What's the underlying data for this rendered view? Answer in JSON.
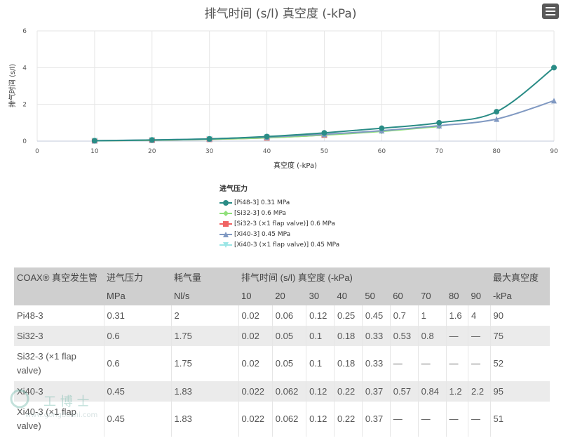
{
  "chart_data": {
    "type": "line",
    "title": "排气时间 (s/l) 真空度 (-kPa)",
    "xlabel": "真空度 (-kPa)",
    "ylabel": "排气时间 (s/l)",
    "xlim": [
      0,
      90
    ],
    "ylim": [
      0,
      6
    ],
    "x_ticks": [
      0,
      10,
      20,
      30,
      40,
      50,
      60,
      70,
      80,
      90
    ],
    "y_ticks": [
      0,
      2,
      4,
      6
    ],
    "grid": true,
    "legend_title": "进气压力",
    "legend_position": "bottom-center",
    "series": [
      {
        "name": "[Pi48-3] 0.31 MPa",
        "color": "#2a8c86",
        "marker": "circle",
        "x": [
          10,
          20,
          30,
          40,
          50,
          60,
          70,
          80,
          90
        ],
        "y": [
          0.02,
          0.06,
          0.12,
          0.25,
          0.45,
          0.7,
          1,
          1.6,
          4
        ]
      },
      {
        "name": "[Si32-3] 0.6 MPa",
        "color": "#8fe07a",
        "marker": "diamond",
        "x": [
          10,
          20,
          30,
          40,
          50,
          60,
          70
        ],
        "y": [
          0.02,
          0.05,
          0.1,
          0.18,
          0.33,
          0.53,
          0.8
        ]
      },
      {
        "name": "[Si32-3 (×1 flap valve)] 0.6 MPa",
        "color": "#f06464",
        "marker": "square",
        "x": [
          10,
          20,
          30,
          40,
          50
        ],
        "y": [
          0.02,
          0.05,
          0.1,
          0.18,
          0.33
        ]
      },
      {
        "name": "[Xi40-3] 0.45 MPa",
        "color": "#8099c2",
        "marker": "triangle",
        "x": [
          10,
          20,
          30,
          40,
          50,
          60,
          70,
          80,
          90
        ],
        "y": [
          0.022,
          0.062,
          0.12,
          0.22,
          0.37,
          0.57,
          0.84,
          1.2,
          2.2
        ]
      },
      {
        "name": "[Xi40-3 (×1 flap valve)] 0.45 MPa",
        "color": "#9be6e6",
        "marker": "triangle-down",
        "x": [
          10,
          20,
          30,
          40,
          50
        ],
        "y": [
          0.022,
          0.062,
          0.12,
          0.22,
          0.37
        ]
      }
    ]
  },
  "table": {
    "header1": [
      "COAX® 真空发生管",
      "进气压力",
      "耗气量",
      "排气时间 (s/l) 真空度 (-kPa)",
      "最大真空度"
    ],
    "header2": [
      "",
      "MPa",
      "Nl/s",
      "10",
      "20",
      "30",
      "40",
      "50",
      "60",
      "70",
      "80",
      "90",
      "-kPa"
    ],
    "rows": [
      [
        "Pi48-3",
        "0.31",
        "2",
        "0.02",
        "0.06",
        "0.12",
        "0.25",
        "0.45",
        "0.7",
        "1",
        "1.6",
        "4",
        "90"
      ],
      [
        "Si32-3",
        "0.6",
        "1.75",
        "0.02",
        "0.05",
        "0.1",
        "0.18",
        "0.33",
        "0.53",
        "0.8",
        "—",
        "—",
        "75"
      ],
      [
        "Si32-3 (×1 flap valve)",
        "0.6",
        "1.75",
        "0.02",
        "0.05",
        "0.1",
        "0.18",
        "0.33",
        "—",
        "—",
        "—",
        "—",
        "52"
      ],
      [
        "Xi40-3",
        "0.45",
        "1.83",
        "0.022",
        "0.062",
        "0.12",
        "0.22",
        "0.37",
        "0.57",
        "0.84",
        "1.2",
        "2.2",
        "95"
      ],
      [
        "Xi40-3 (×1 flap valve)",
        "0.45",
        "1.83",
        "0.022",
        "0.062",
        "0.12",
        "0.22",
        "0.37",
        "—",
        "—",
        "—",
        "—",
        "51"
      ]
    ]
  },
  "watermark": {
    "logo_text": "工博士",
    "site": "www.gongboshi.com"
  },
  "icons": {
    "menu": "hamburger-menu-icon"
  }
}
